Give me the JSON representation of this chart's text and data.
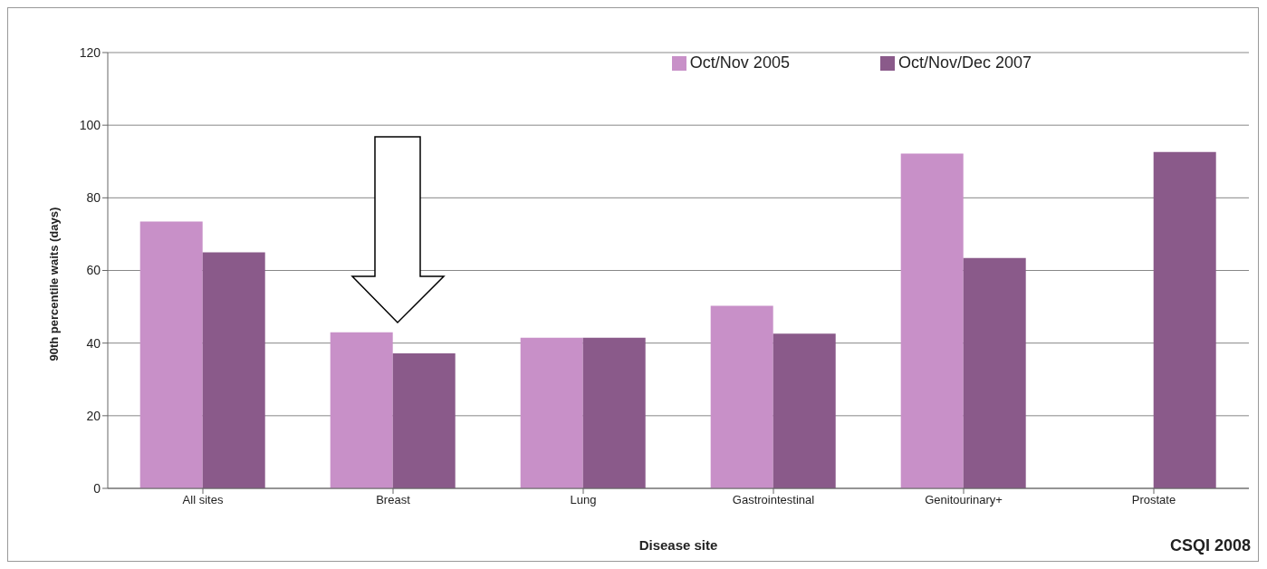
{
  "chart_data": {
    "type": "bar",
    "xlabel": "Disease site",
    "ylabel": "90th percentile waits (days)",
    "categories": [
      "All sites",
      "Breast",
      "Lung",
      "Gastrointestinal",
      "Genitourinary+",
      "Prostate"
    ],
    "series": [
      {
        "name": "Oct/Nov 2005",
        "color": "#c890c8",
        "values": [
          73.5,
          43,
          41.5,
          50.3,
          92.2,
          null
        ]
      },
      {
        "name": "Oct/Nov/Dec 2007",
        "color": "#8a5a8a",
        "values": [
          65,
          37.2,
          41.5,
          42.6,
          63.4,
          92.6
        ]
      }
    ],
    "ylim": [
      0,
      120
    ],
    "yticks": [
      0,
      20,
      40,
      60,
      80,
      100,
      120
    ],
    "grid": "y",
    "legend": "top right",
    "annotations": [
      "CSQI 2008"
    ]
  }
}
